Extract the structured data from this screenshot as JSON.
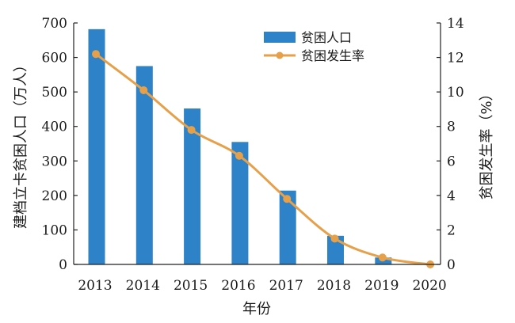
{
  "chart_data": {
    "type": "bar+line",
    "categories": [
      "2013",
      "2014",
      "2015",
      "2016",
      "2017",
      "2018",
      "2019",
      "2020"
    ],
    "series": [
      {
        "name": "贫困人口",
        "type": "bar",
        "axis": "left",
        "color": "#2e82c7",
        "values": [
          682,
          575,
          452,
          355,
          214,
          83,
          20,
          0
        ]
      },
      {
        "name": "贫困发生率",
        "type": "line",
        "axis": "right",
        "color": "#e6a04a",
        "values": [
          12.2,
          10.1,
          7.8,
          6.3,
          3.8,
          1.5,
          0.4,
          0
        ]
      }
    ],
    "xlabel": "年份",
    "ylabel": "建档立卡贫困人口（万人）",
    "y2label": "贫困发生率（%）",
    "ylim": [
      0,
      700
    ],
    "y2lim": [
      0,
      14
    ],
    "yticks": [
      "0",
      "100",
      "200",
      "300",
      "400",
      "500",
      "600",
      "700"
    ],
    "y2ticks": [
      "0",
      "2",
      "4",
      "6",
      "8",
      "10",
      "12",
      "14"
    ],
    "legend": "top-right",
    "grid": false
  }
}
